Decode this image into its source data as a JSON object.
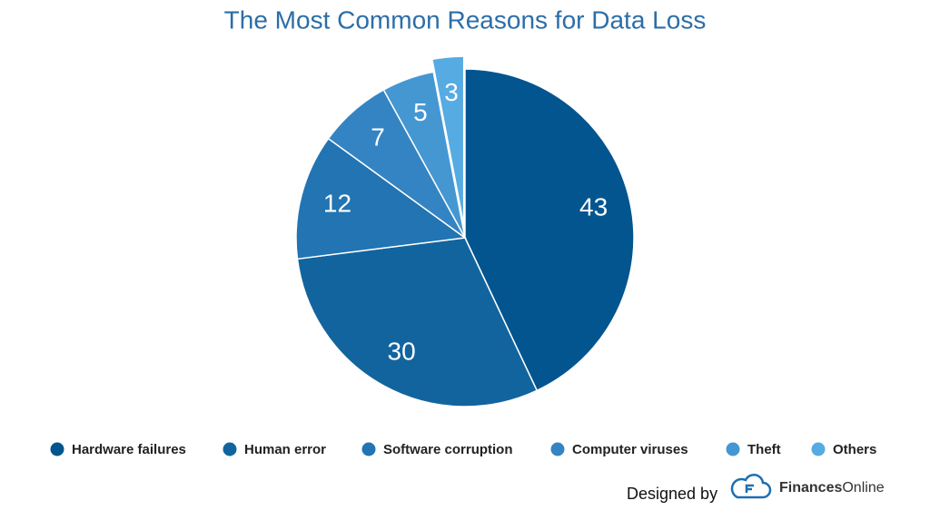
{
  "chart_data": {
    "type": "pie",
    "title": "The Most Common Reasons for Data Loss",
    "categories": [
      "Hardware failures",
      "Human error",
      "Software corruption",
      "Computer viruses",
      "Theft",
      "Others"
    ],
    "values": [
      43,
      30,
      12,
      7,
      5,
      3
    ],
    "colors": [
      "#02558f",
      "#12649f",
      "#2274b2",
      "#3484c3",
      "#4597d2",
      "#56abe2"
    ],
    "exploded": [
      false,
      false,
      false,
      false,
      false,
      true
    ],
    "legend": "bottom"
  },
  "credit": {
    "text": "Designed by",
    "brand_bold": "Finances",
    "brand_light": "Online"
  }
}
